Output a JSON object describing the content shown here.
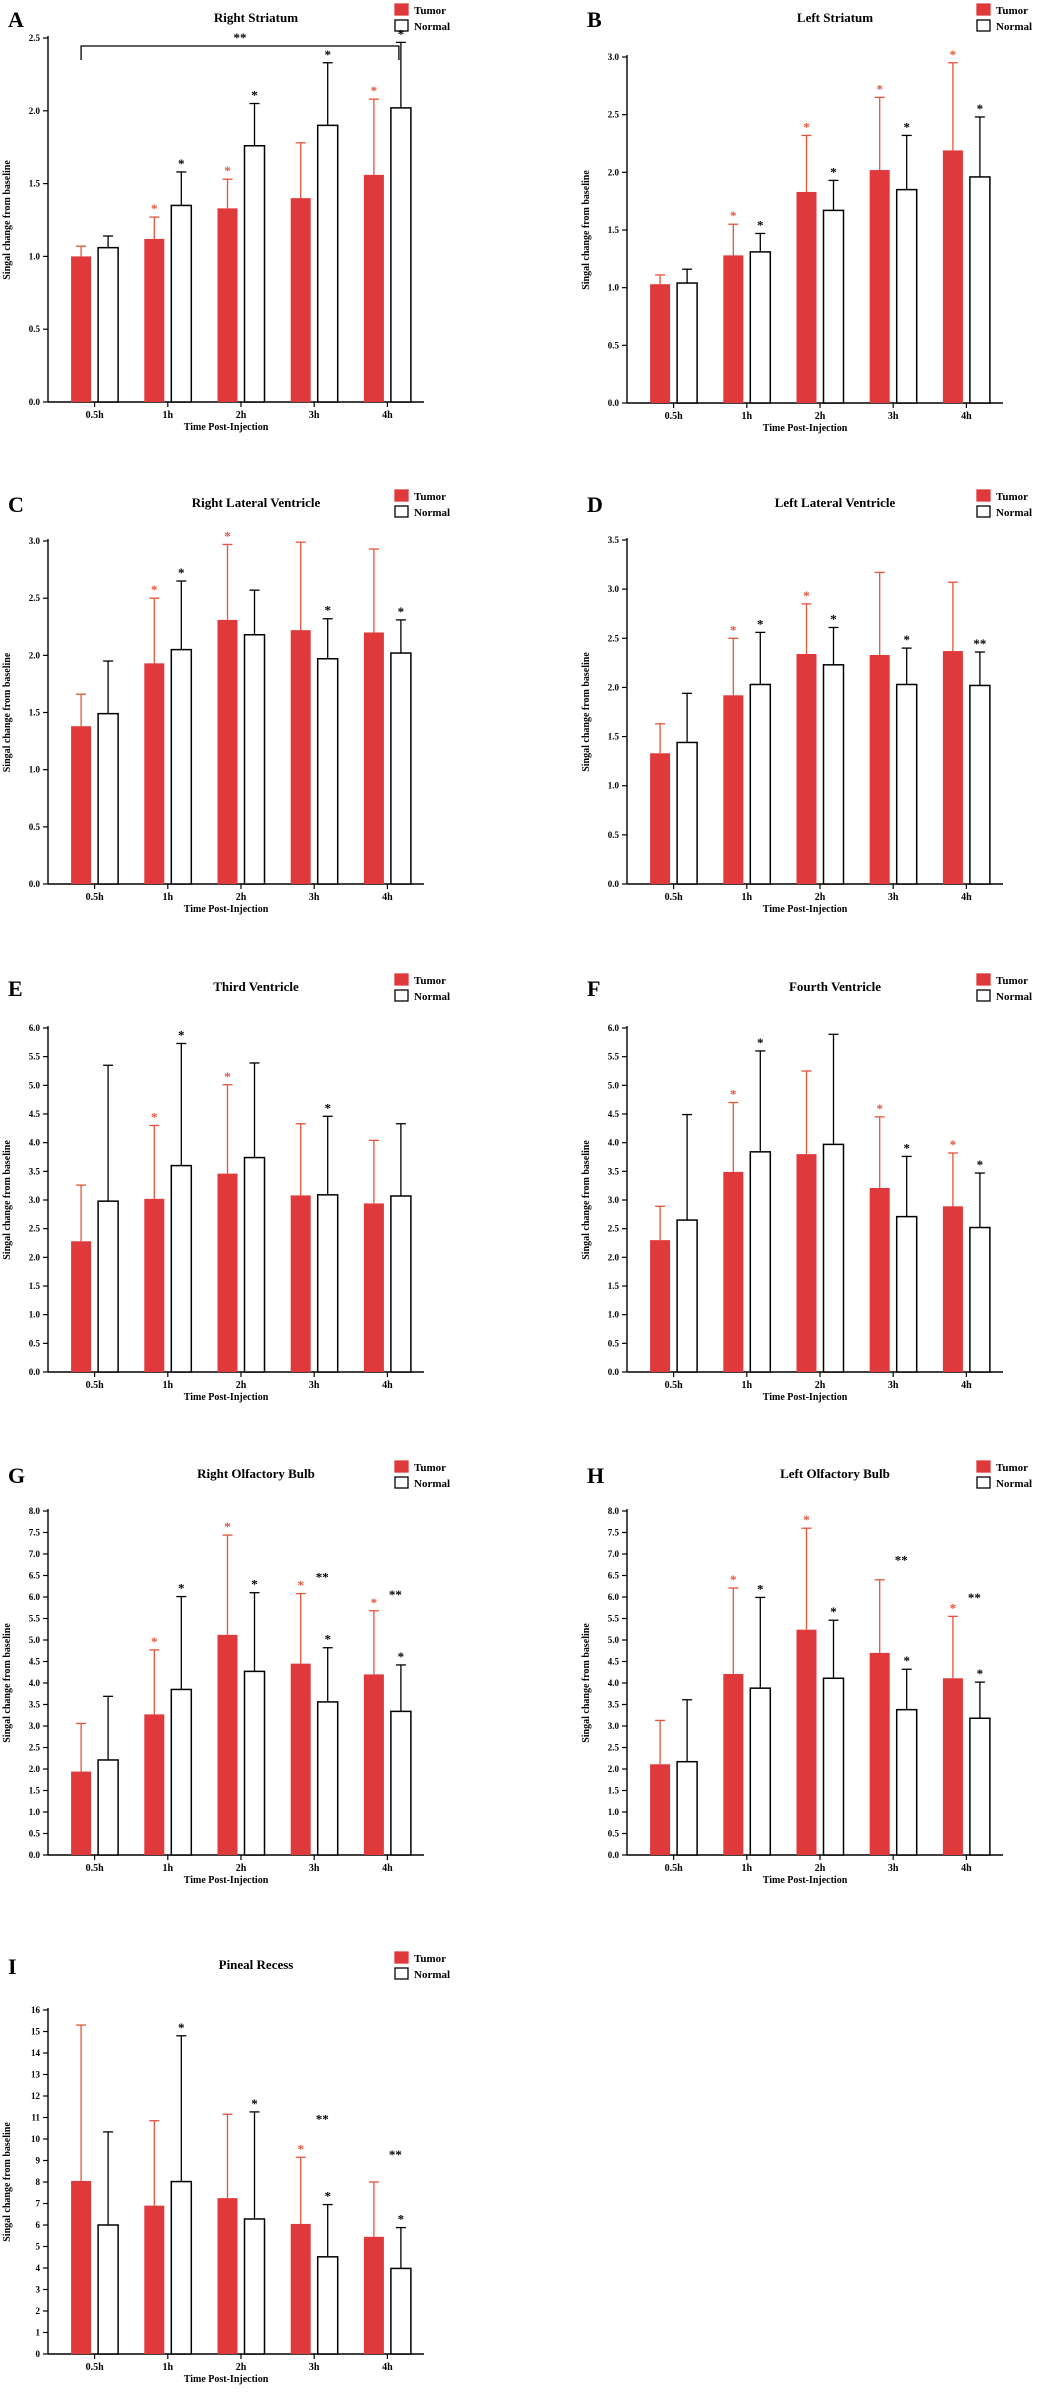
{
  "colors": {
    "tumor": "#E0393B",
    "normal": "#FFFFFF",
    "axis": "#000000",
    "tumor_star": "#E5533A"
  },
  "chart_data": [
    {
      "panel": "A",
      "type": "bar",
      "title": "Right Striatum",
      "xlabel": "Time Post-Injection",
      "ylabel": "Singal change from baseline",
      "categories": [
        "0.5h",
        "1h",
        "2h",
        "3h",
        "4h"
      ],
      "ylim": [
        0,
        2.5
      ],
      "yticks": [
        "0.0",
        "0.5",
        "1.0",
        "1.5",
        "2.0",
        "2.5"
      ],
      "legend": [
        "Tumor",
        "Normal"
      ],
      "series": [
        {
          "name": "Tumor",
          "values": [
            1.0,
            1.12,
            1.33,
            1.4,
            1.56
          ],
          "errors": [
            0.07,
            0.15,
            0.2,
            0.38,
            0.52
          ],
          "stars": [
            "",
            "*",
            "*",
            "",
            "*"
          ]
        },
        {
          "name": "Normal",
          "values": [
            1.06,
            1.35,
            1.76,
            1.9,
            2.02
          ],
          "errors": [
            0.08,
            0.23,
            0.29,
            0.43,
            0.45
          ],
          "stars": [
            "",
            "*",
            "*",
            "*",
            "*"
          ]
        }
      ],
      "bracket": {
        "from": "0.5h",
        "to": "4h",
        "label": "**"
      }
    },
    {
      "panel": "B",
      "type": "bar",
      "title": "Left Striatum",
      "xlabel": "Time Post-Injection",
      "ylabel": "Singal change from baseline",
      "categories": [
        "0.5h",
        "1h",
        "2h",
        "3h",
        "4h"
      ],
      "ylim": [
        0,
        3.0
      ],
      "yticks": [
        "0.0",
        "0.5",
        "1.0",
        "1.5",
        "2.0",
        "2.5",
        "3.0"
      ],
      "legend": [
        "Tumor",
        "Normal"
      ],
      "series": [
        {
          "name": "Tumor",
          "values": [
            1.03,
            1.28,
            1.83,
            2.02,
            2.19
          ],
          "errors": [
            0.08,
            0.27,
            0.49,
            0.63,
            0.76
          ],
          "stars": [
            "",
            "*",
            "*",
            "*",
            "*"
          ]
        },
        {
          "name": "Normal",
          "values": [
            1.04,
            1.31,
            1.67,
            1.85,
            1.96
          ],
          "errors": [
            0.12,
            0.16,
            0.26,
            0.47,
            0.52
          ],
          "stars": [
            "",
            "*",
            "*",
            "*",
            "*"
          ]
        }
      ]
    },
    {
      "panel": "C",
      "type": "bar",
      "title": "Right Lateral Ventricle",
      "xlabel": "Time Post-Injection",
      "ylabel": "Singal change from baseline",
      "categories": [
        "0.5h",
        "1h",
        "2h",
        "3h",
        "4h"
      ],
      "ylim": [
        0,
        3.0
      ],
      "yticks": [
        "0.0",
        "0.5",
        "1.0",
        "1.5",
        "2.0",
        "2.5",
        "3.0"
      ],
      "legend": [
        "Tumor",
        "Normal"
      ],
      "series": [
        {
          "name": "Tumor",
          "values": [
            1.38,
            1.93,
            2.31,
            2.22,
            2.2
          ],
          "errors": [
            0.28,
            0.57,
            0.66,
            0.77,
            0.73
          ],
          "stars": [
            "",
            "*",
            "*",
            "",
            ""
          ]
        },
        {
          "name": "Normal",
          "values": [
            1.49,
            2.05,
            2.18,
            1.97,
            2.02
          ],
          "errors": [
            0.46,
            0.6,
            0.39,
            0.35,
            0.29
          ],
          "stars": [
            "",
            "*",
            "",
            "*",
            "*"
          ]
        }
      ]
    },
    {
      "panel": "D",
      "type": "bar",
      "title": "Left Lateral Ventricle",
      "xlabel": "Time  Post-Injection",
      "ylabel": "Singal change from baseline",
      "categories": [
        "0.5h",
        "1h",
        "2h",
        "3h",
        "4h"
      ],
      "ylim": [
        0,
        3.5
      ],
      "yticks": [
        "0.0",
        "0.5",
        "1.0",
        "1.5",
        "2.0",
        "2.5",
        "3.0",
        "3.5"
      ],
      "legend": [
        "Tumor",
        "Normal"
      ],
      "series": [
        {
          "name": "Tumor",
          "values": [
            1.33,
            1.92,
            2.34,
            2.33,
            2.37
          ],
          "errors": [
            0.3,
            0.58,
            0.51,
            0.84,
            0.7
          ],
          "stars": [
            "",
            "*",
            "*",
            "",
            ""
          ]
        },
        {
          "name": "Normal",
          "values": [
            1.44,
            2.03,
            2.23,
            2.03,
            2.02
          ],
          "errors": [
            0.5,
            0.53,
            0.38,
            0.37,
            0.34
          ],
          "stars": [
            "",
            "*",
            "*",
            "*",
            "**"
          ]
        }
      ]
    },
    {
      "panel": "E",
      "type": "bar",
      "title": "Third Ventricle",
      "xlabel": "Time  Post-Injection",
      "ylabel": "Singal change from baseline",
      "categories": [
        "0.5h",
        "1h",
        "2h",
        "3h",
        "4h"
      ],
      "ylim": [
        0,
        6.0
      ],
      "yticks": [
        "0.0",
        "0.5",
        "1.0",
        "1.5",
        "2.0",
        "2.5",
        "3.0",
        "3.5",
        "4.0",
        "4.5",
        "5.0",
        "5.5",
        "6.0"
      ],
      "legend": [
        "Tumor",
        "Normal"
      ],
      "series": [
        {
          "name": "Tumor",
          "values": [
            2.28,
            3.02,
            3.46,
            3.08,
            2.94
          ],
          "errors": [
            0.98,
            1.28,
            1.55,
            1.25,
            1.1
          ],
          "stars": [
            "",
            "*",
            "*",
            "",
            ""
          ]
        },
        {
          "name": "Normal",
          "values": [
            2.98,
            3.6,
            3.74,
            3.09,
            3.07
          ],
          "errors": [
            2.37,
            2.13,
            1.65,
            1.37,
            1.26
          ],
          "stars": [
            "",
            "*",
            "",
            "*",
            ""
          ]
        }
      ]
    },
    {
      "panel": "F",
      "type": "bar",
      "title": "Fourth Ventricle",
      "xlabel": "Time  Post-Injection",
      "ylabel": "Singal change from baseline",
      "categories": [
        "0.5h",
        "1h",
        "2h",
        "3h",
        "4h"
      ],
      "ylim": [
        0,
        6.0
      ],
      "yticks": [
        "0.0",
        "0.5",
        "1.0",
        "1.5",
        "2.0",
        "2.5",
        "3.0",
        "3.5",
        "4.0",
        "4.5",
        "5.0",
        "5.5",
        "6.0"
      ],
      "legend": [
        "Tumor",
        "Normal"
      ],
      "series": [
        {
          "name": "Tumor",
          "values": [
            2.3,
            3.49,
            3.8,
            3.21,
            2.89
          ],
          "errors": [
            0.59,
            1.21,
            1.45,
            1.24,
            0.93
          ],
          "stars": [
            "",
            "*",
            "",
            "*",
            "*"
          ]
        },
        {
          "name": "Normal",
          "values": [
            2.65,
            3.84,
            3.97,
            2.71,
            2.52
          ],
          "errors": [
            1.84,
            1.76,
            1.92,
            1.05,
            0.95
          ],
          "stars": [
            "",
            "*",
            "",
            "*",
            "*"
          ]
        }
      ]
    },
    {
      "panel": "G",
      "type": "bar",
      "title": "Right Olfactory Bulb",
      "xlabel": "Time  Post-Injection",
      "ylabel": "Singal change from baseline",
      "categories": [
        "0.5h",
        "1h",
        "2h",
        "3h",
        "4h"
      ],
      "ylim": [
        0,
        8.0
      ],
      "yticks": [
        "0.0",
        "0.5",
        "1.0",
        "1.5",
        "2.0",
        "2.5",
        "3.0",
        "3.5",
        "4.0",
        "4.5",
        "5.0",
        "5.5",
        "6.0",
        "6.5",
        "7.0",
        "7.5",
        "8.0"
      ],
      "legend": [
        "Tumor",
        "Normal"
      ],
      "series": [
        {
          "name": "Tumor",
          "values": [
            1.94,
            3.27,
            5.12,
            4.45,
            4.2
          ],
          "errors": [
            1.12,
            1.5,
            2.32,
            1.63,
            1.48
          ],
          "stars": [
            "",
            "*",
            "*",
            "*",
            "*"
          ]
        },
        {
          "name": "Normal",
          "values": [
            2.21,
            3.85,
            4.27,
            3.56,
            3.34
          ],
          "errors": [
            1.48,
            2.16,
            1.83,
            1.26,
            1.08
          ],
          "stars": [
            "",
            "*",
            "*",
            "*",
            "*"
          ]
        }
      ],
      "extra_stars": [
        {
          "category": "3h",
          "label": "**",
          "value": 6.45
        },
        {
          "category": "4h",
          "label": "**",
          "value": 6.05
        }
      ]
    },
    {
      "panel": "H",
      "type": "bar",
      "title": "Left Olfactory Bulb",
      "xlabel": "Time  Post-Injection",
      "ylabel": "Singal change from baseline",
      "categories": [
        "0.5h",
        "1h",
        "2h",
        "3h",
        "4h"
      ],
      "ylim": [
        0,
        8.0
      ],
      "yticks": [
        "0.0",
        "0.5",
        "1.0",
        "1.5",
        "2.0",
        "2.5",
        "3.0",
        "3.5",
        "4.0",
        "4.5",
        "5.0",
        "5.5",
        "6.0",
        "6.5",
        "7.0",
        "7.5",
        "8.0"
      ],
      "legend": [
        "Tumor",
        "Normal"
      ],
      "series": [
        {
          "name": "Tumor",
          "values": [
            2.11,
            4.21,
            5.24,
            4.7,
            4.11
          ],
          "errors": [
            1.02,
            2.0,
            2.36,
            1.7,
            1.44
          ],
          "stars": [
            "",
            "*",
            "*",
            "",
            "*"
          ]
        },
        {
          "name": "Normal",
          "values": [
            2.17,
            3.88,
            4.11,
            3.38,
            3.18
          ],
          "errors": [
            1.44,
            2.11,
            1.35,
            0.94,
            0.84
          ],
          "stars": [
            "",
            "*",
            "*",
            "*",
            "*"
          ]
        }
      ],
      "extra_stars": [
        {
          "category": "3h",
          "label": "**",
          "value": 6.85
        },
        {
          "category": "4h",
          "label": "**",
          "value": 5.98
        }
      ]
    },
    {
      "panel": "I",
      "type": "bar",
      "title": "Pineal Recess",
      "xlabel": "Time  Post-Injection",
      "ylabel": "Singal change from baseline",
      "categories": [
        "0.5h",
        "1h",
        "2h",
        "3h",
        "4h"
      ],
      "ylim": [
        0,
        16
      ],
      "yticks": [
        "0",
        "1",
        "2",
        "3",
        "4",
        "5",
        "6",
        "7",
        "8",
        "9",
        "10",
        "11",
        "12",
        "13",
        "14",
        "15",
        "16"
      ],
      "legend": [
        "Tumor",
        "Normal"
      ],
      "series": [
        {
          "name": "Tumor",
          "values": [
            8.05,
            6.9,
            7.25,
            6.05,
            5.45
          ],
          "errors": [
            7.25,
            3.95,
            3.9,
            3.1,
            2.55
          ],
          "stars": [
            "",
            "",
            "",
            "*",
            ""
          ]
        },
        {
          "name": "Normal",
          "values": [
            6.0,
            8.02,
            6.28,
            4.52,
            3.98
          ],
          "errors": [
            4.33,
            6.78,
            4.98,
            2.43,
            1.9
          ],
          "stars": [
            "",
            "*",
            "*",
            "*",
            "*"
          ]
        }
      ],
      "extra_stars": [
        {
          "category": "3h",
          "label": "**",
          "value": 10.9
        },
        {
          "category": "4h",
          "label": "**",
          "value": 9.25
        }
      ]
    }
  ]
}
